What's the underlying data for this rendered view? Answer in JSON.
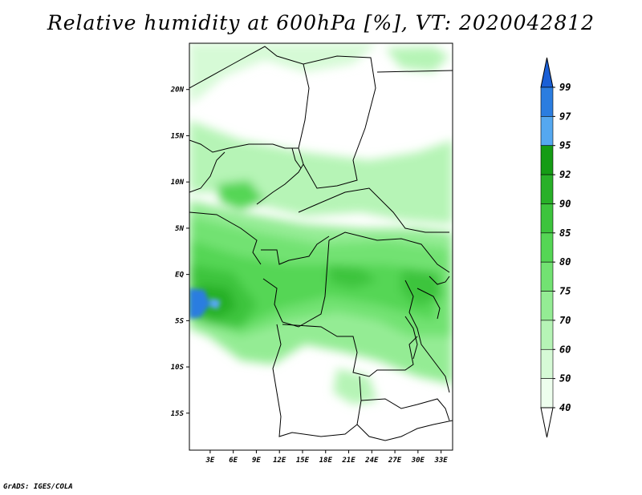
{
  "title": "Relative humidity at 600hPa [%], VT: 2020042812",
  "credit": "GrADS: IGES/COLA",
  "map": {
    "lat_labels": [
      "20N",
      "15N",
      "10N",
      "5N",
      "EQ",
      "5S",
      "10S",
      "15S"
    ],
    "lon_labels": [
      "3E",
      "6E",
      "9E",
      "12E",
      "15E",
      "18E",
      "21E",
      "24E",
      "27E",
      "30E",
      "33E"
    ],
    "lat_range": [
      -19,
      25
    ],
    "lon_range": [
      0.3,
      34.5
    ]
  },
  "colorbar": {
    "levels": [
      "99",
      "97",
      "95",
      "92",
      "90",
      "85",
      "80",
      "75",
      "70",
      "60",
      "50",
      "40"
    ],
    "colors": [
      "#1a5fd6",
      "#2b7de0",
      "#55a8f0",
      "#159c15",
      "#28b028",
      "#3dc43d",
      "#55d655",
      "#72e272",
      "#94ec94",
      "#b6f4b6",
      "#d6fad6",
      "#eefeee"
    ],
    "top_arrow_color": "#1a5fd6",
    "bottom_arrow_color": "#ffffff"
  },
  "colors": {
    "land": "#ffffff",
    "border": "#000000"
  }
}
